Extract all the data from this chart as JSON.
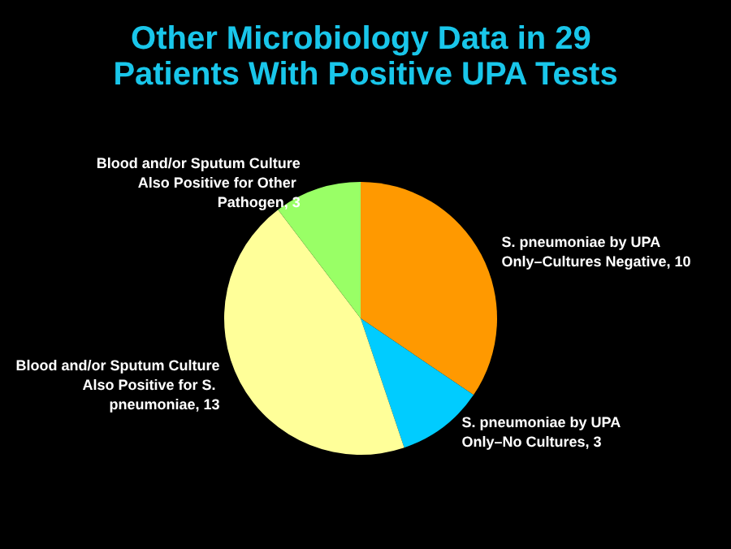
{
  "chart_data": {
    "type": "pie",
    "title": "Other Microbiology Data in 29 Patients With Positive UPA Tests",
    "categories": [
      "S. pneumoniae by UPA Only–Cultures Negative",
      "S. pneumoniae by UPA Only–No Cultures",
      "Blood and/or Sputum Culture Also Positive for S. pneumoniae",
      "Blood and/or Sputum Culture Also Positive for Other Pathogen"
    ],
    "values": [
      10,
      3,
      13,
      3
    ],
    "value_labels": [
      ", 10",
      ", 3",
      ", 13",
      ", 3"
    ],
    "colors": [
      "#ff9900",
      "#00ccff",
      "#ffff99",
      "#99ff66"
    ],
    "data_labels": true,
    "legend": false
  }
}
